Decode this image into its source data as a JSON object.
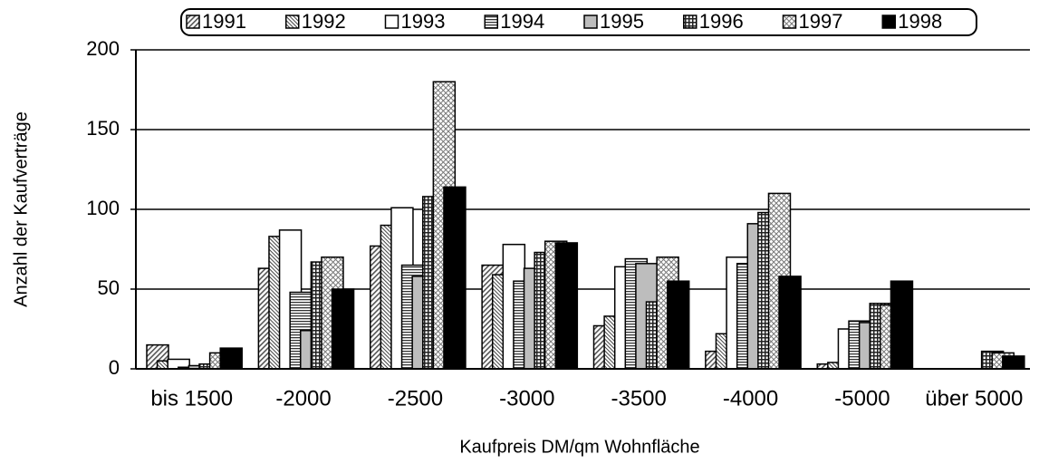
{
  "chart_data": {
    "type": "bar",
    "x_label": "Kaufpreis DM/qm Wohnfläche",
    "y_label": "Anzahl der Kaufverträge",
    "categories": [
      "bis 1500",
      "-2000",
      "-2500",
      "-3000",
      "-3500",
      "-4000",
      "-5000",
      "über 5000"
    ],
    "series": [
      {
        "name": "1991",
        "color": "#c8c8c8",
        "values": [
          15,
          63,
          77,
          65,
          27,
          11,
          3,
          0
        ]
      },
      {
        "name": "1992",
        "color": "#d8d8d8",
        "values": [
          5,
          83,
          90,
          59,
          33,
          22,
          4,
          0
        ]
      },
      {
        "name": "1993",
        "color": "#ffffff",
        "values": [
          6,
          87,
          101,
          78,
          64,
          70,
          25,
          0
        ]
      },
      {
        "name": "1994",
        "color": "#a0a0a0",
        "values": [
          1,
          48,
          65,
          55,
          69,
          66,
          30,
          0
        ]
      },
      {
        "name": "1995",
        "color": "#c0c0c0",
        "values": [
          2,
          24,
          58,
          63,
          66,
          91,
          29,
          0
        ]
      },
      {
        "name": "1996",
        "color": "#909090",
        "values": [
          3,
          67,
          108,
          73,
          42,
          98,
          41,
          11
        ]
      },
      {
        "name": "1997",
        "color": "#e0e0e0",
        "values": [
          10,
          70,
          180,
          80,
          70,
          110,
          40,
          10
        ]
      },
      {
        "name": "1998",
        "color": "#000000",
        "values": [
          13,
          50,
          114,
          79,
          55,
          58,
          55,
          8
        ]
      }
    ],
    "ylim": [
      0,
      200
    ],
    "yticks": [
      0,
      50,
      100,
      150,
      200
    ],
    "grid": true,
    "legend": "top"
  }
}
